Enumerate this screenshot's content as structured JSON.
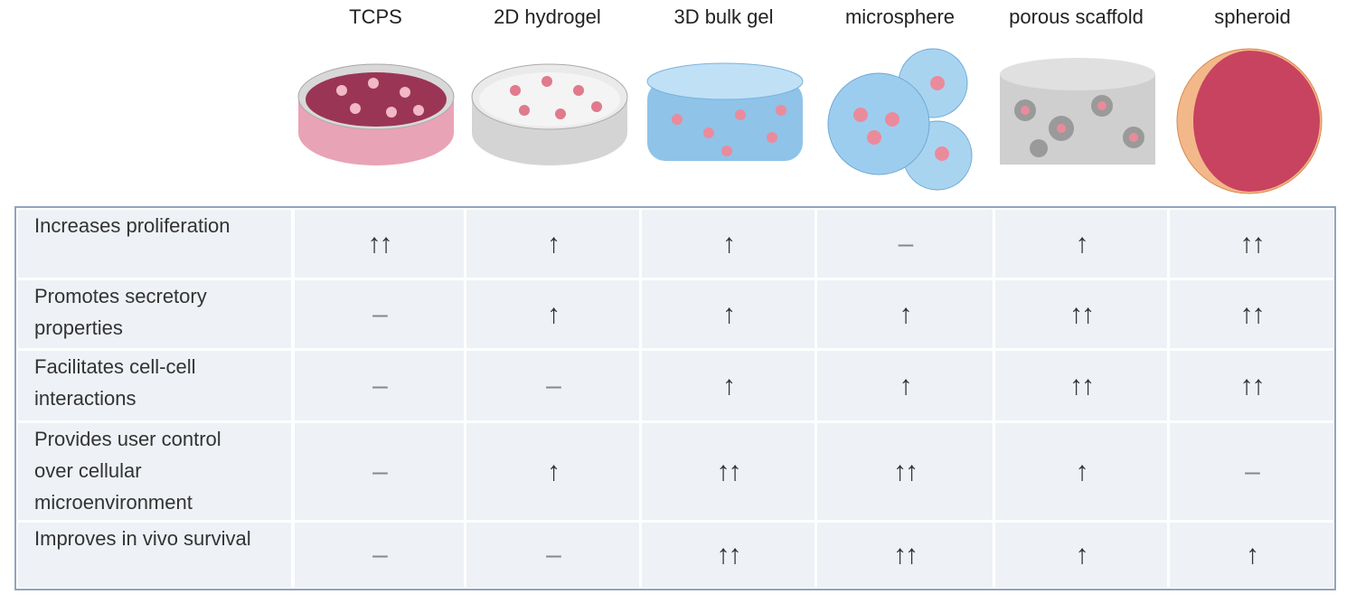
{
  "columns": [
    "TCPS",
    "2D hydrogel",
    "3D bulk gel",
    "microsphere",
    "porous scaffold",
    "spheroid"
  ],
  "rows": [
    {
      "label": [
        "Increases proliferation"
      ],
      "cells": [
        "↑↑",
        "↑",
        "↑",
        "–",
        "↑",
        "↑↑"
      ]
    },
    {
      "label": [
        "Promotes secretory",
        "properties"
      ],
      "cells": [
        "–",
        "↑",
        "↑",
        "↑",
        "↑↑",
        "↑↑"
      ]
    },
    {
      "label": [
        "Facilitates cell-cell",
        "interactions"
      ],
      "cells": [
        "–",
        "–",
        "↑",
        "↑",
        "↑↑",
        "↑↑"
      ]
    },
    {
      "label": [
        "Provides user control",
        "over cellular",
        "microenvironment"
      ],
      "cells": [
        "–",
        "↑",
        "↑↑",
        "↑↑",
        "↑",
        "–"
      ]
    },
    {
      "label": [
        "Improves in vivo survival"
      ],
      "cells": [
        "–",
        "–",
        "↑↑",
        "↑↑",
        "↑",
        "↑"
      ]
    }
  ]
}
